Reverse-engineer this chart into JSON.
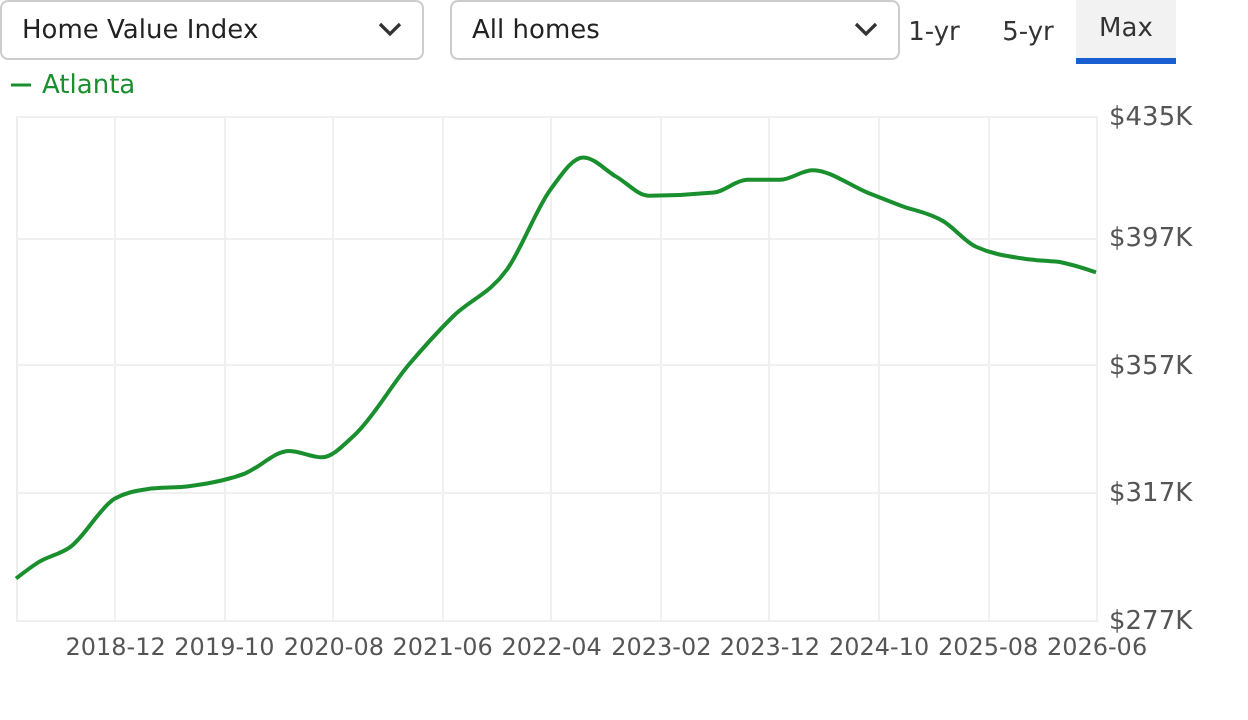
{
  "chart_data": {
    "type": "line",
    "annotations": [
      "Home Value Index",
      "All homes",
      "1-yr",
      "5-yr",
      "Max"
    ],
    "x": [
      "2018-03",
      "2018-05",
      "2018-08",
      "2018-12",
      "2019-03",
      "2019-07",
      "2019-12",
      "2020-04",
      "2020-07",
      "2020-10",
      "2021-03",
      "2021-07",
      "2021-12",
      "2022-04",
      "2022-07",
      "2022-10",
      "2023-01",
      "2023-07",
      "2023-10",
      "2024-01",
      "2024-04",
      "2024-09",
      "2024-12",
      "2025-04",
      "2025-07",
      "2025-12",
      "2026-03",
      "2026-06"
    ],
    "series": [
      {
        "name": "Atlanta",
        "color": "#1a8f2e",
        "values": [
          290000,
          295000,
          300000,
          315000,
          318000,
          319000,
          323000,
          330000,
          328000,
          335000,
          357000,
          372000,
          387000,
          412000,
          422000,
          416000,
          410000,
          411000,
          415000,
          415000,
          418000,
          411000,
          407000,
          402000,
          394000,
          390000,
          389000,
          386000
        ]
      }
    ],
    "xlim": [
      "2018-03",
      "2026-06"
    ],
    "xticks": [
      "2018-12",
      "2019-10",
      "2020-08",
      "2021-06",
      "2022-04",
      "2023-02",
      "2023-12",
      "2024-10",
      "2025-08",
      "2026-06"
    ],
    "ylim": [
      277000,
      435000
    ],
    "yticks": [
      {
        "value": 277000,
        "label": "$277K"
      },
      {
        "value": 317000,
        "label": "$317K"
      },
      {
        "value": 357000,
        "label": "$357K"
      },
      {
        "value": 397000,
        "label": "$397K"
      },
      {
        "value": 435000,
        "label": "$435K"
      }
    ],
    "grid": true,
    "legend": "top left",
    "marker": "none",
    "line_style": "solid"
  }
}
